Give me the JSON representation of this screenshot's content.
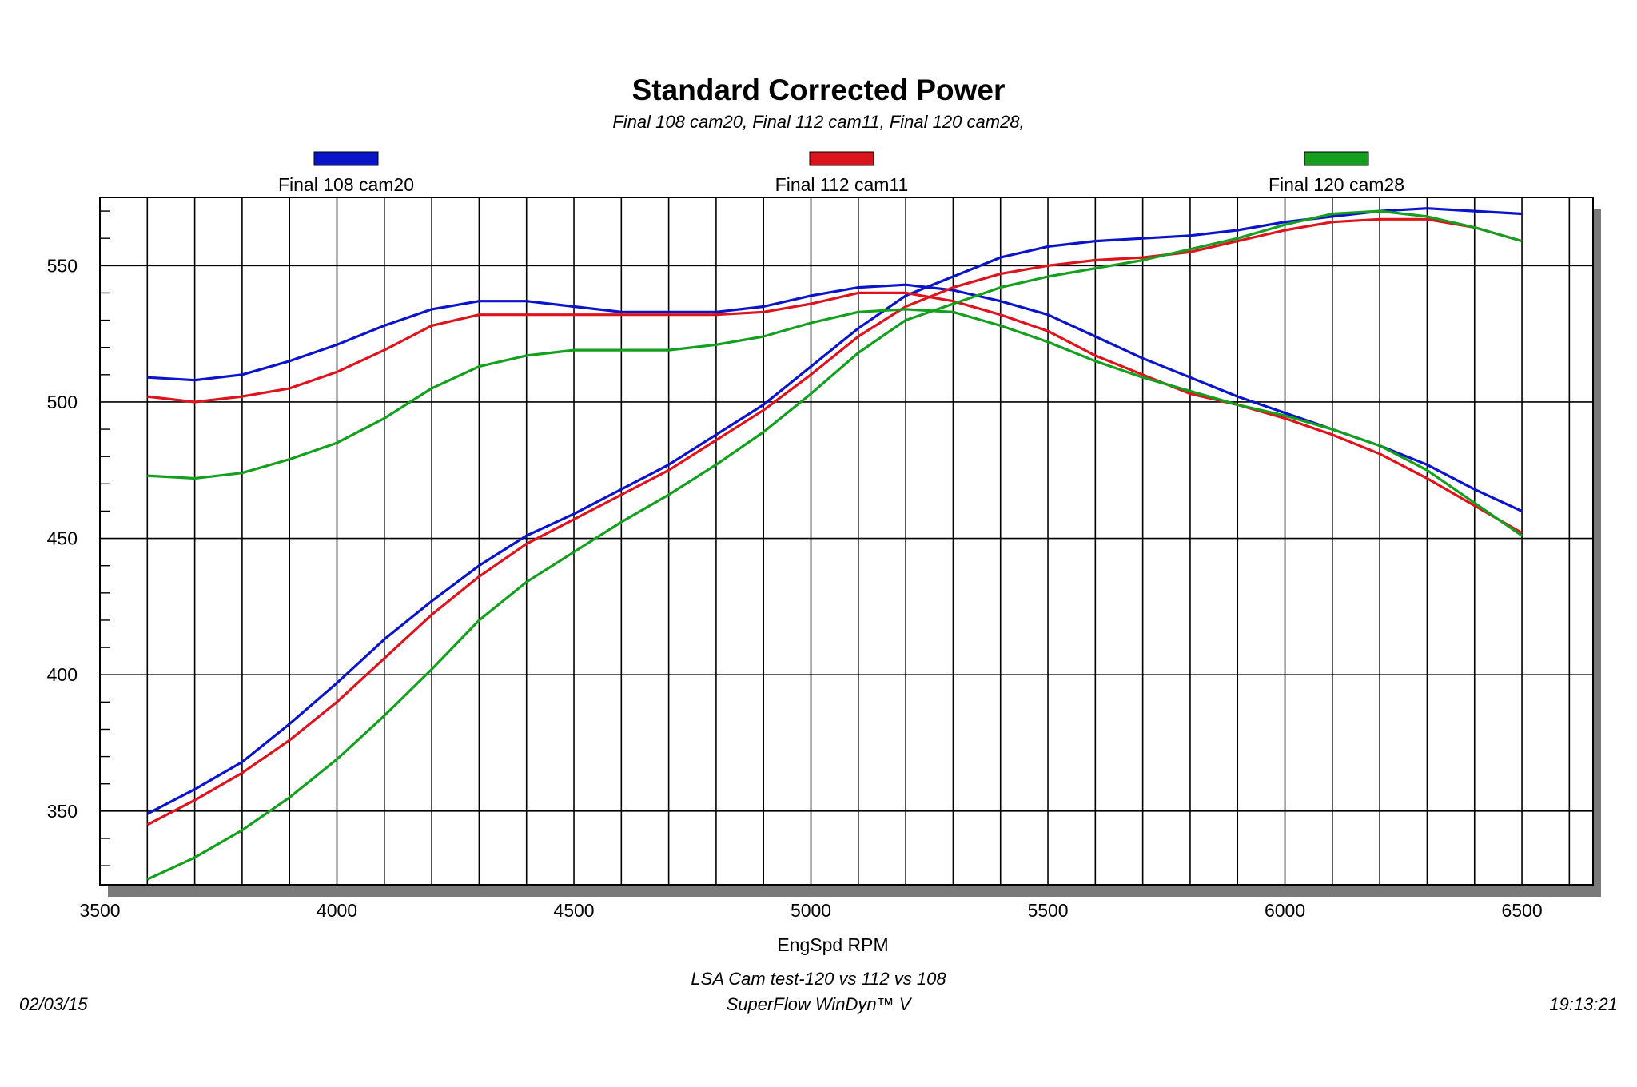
{
  "chart_data": {
    "type": "line",
    "title": "Standard Corrected Power",
    "subtitle": "Final 108 cam20, Final 112 cam11, Final 120 cam28,",
    "xlabel": "EngSpd RPM",
    "ylabel": "",
    "xlim": [
      3500,
      6650
    ],
    "ylim": [
      323,
      575
    ],
    "xticks": [
      3500,
      4000,
      4500,
      5000,
      5500,
      6000,
      6500
    ],
    "yticks": [
      350,
      400,
      450,
      500,
      550
    ],
    "grid": true,
    "legend_position": "top",
    "x": [
      3600,
      3700,
      3800,
      3900,
      4000,
      4100,
      4200,
      4300,
      4400,
      4500,
      4600,
      4700,
      4800,
      4900,
      5000,
      5100,
      5200,
      5300,
      5400,
      5500,
      5600,
      5700,
      5800,
      5900,
      6000,
      6100,
      6200,
      6300,
      6400,
      6500
    ],
    "series": [
      {
        "name": "Final 108 cam20",
        "color": "#0a14c8",
        "curves": [
          {
            "quantity": "power",
            "values": [
              349,
              358,
              368,
              382,
              397,
              413,
              427,
              440,
              451,
              459,
              468,
              477,
              488,
              499,
              513,
              527,
              539,
              546,
              553,
              557,
              559,
              560,
              561,
              563,
              566,
              568,
              570,
              571,
              570,
              569
            ]
          },
          {
            "quantity": "torque",
            "values": [
              509,
              508,
              510,
              515,
              521,
              528,
              534,
              537,
              537,
              535,
              533,
              533,
              533,
              535,
              539,
              542,
              543,
              541,
              537,
              532,
              524,
              516,
              509,
              502,
              496,
              490,
              484,
              477,
              468,
              460
            ]
          }
        ]
      },
      {
        "name": "Final 112 cam11",
        "color": "#dc141e",
        "curves": [
          {
            "quantity": "power",
            "values": [
              345,
              354,
              364,
              376,
              390,
              406,
              422,
              436,
              448,
              457,
              466,
              475,
              486,
              497,
              510,
              524,
              535,
              542,
              547,
              550,
              552,
              553,
              555,
              559,
              563,
              566,
              567,
              567,
              564,
              559
            ]
          },
          {
            "quantity": "torque",
            "values": [
              502,
              500,
              502,
              505,
              511,
              519,
              528,
              532,
              532,
              532,
              532,
              532,
              532,
              533,
              536,
              540,
              540,
              537,
              532,
              526,
              517,
              510,
              503,
              499,
              494,
              488,
              481,
              472,
              462,
              452
            ]
          }
        ]
      },
      {
        "name": "Final 120 cam28",
        "color": "#14a01e",
        "curves": [
          {
            "quantity": "power",
            "values": [
              325,
              333,
              343,
              355,
              369,
              385,
              402,
              420,
              434,
              445,
              456,
              466,
              477,
              489,
              503,
              518,
              530,
              536,
              542,
              546,
              549,
              552,
              556,
              560,
              565,
              569,
              570,
              568,
              564,
              559
            ]
          },
          {
            "quantity": "torque",
            "values": [
              473,
              472,
              474,
              479,
              485,
              494,
              505,
              513,
              517,
              519,
              519,
              519,
              521,
              524,
              529,
              533,
              534,
              533,
              528,
              522,
              515,
              509,
              504,
              499,
              495,
              490,
              484,
              475,
              463,
              451
            ]
          }
        ]
      }
    ]
  },
  "footer": {
    "test_name": "LSA Cam test-120 vs 112 vs 108",
    "software": "SuperFlow WinDyn™ V",
    "date": "02/03/15",
    "time": "19:13:21"
  }
}
